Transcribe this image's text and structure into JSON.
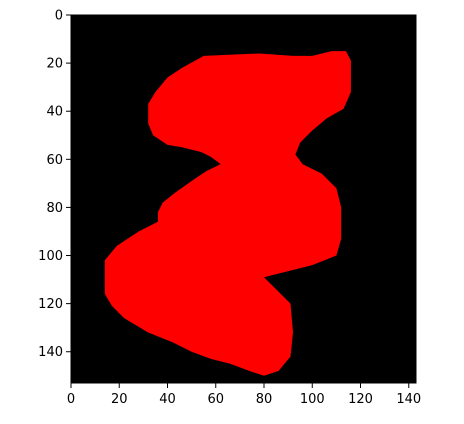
{
  "chart_data": {
    "type": "heatmap",
    "title": "",
    "xlabel": "",
    "ylabel": "",
    "xlim": [
      0,
      143
    ],
    "ylim": [
      153,
      0
    ],
    "x_ticks": [
      "0",
      "20",
      "40",
      "60",
      "80",
      "100",
      "120",
      "140"
    ],
    "y_ticks": [
      "0",
      "20",
      "40",
      "60",
      "80",
      "100",
      "120",
      "140"
    ],
    "background_color": "#000000",
    "shape_color": "#ff0000",
    "shape_outline": [
      [
        55,
        17
      ],
      [
        78,
        16
      ],
      [
        92,
        17
      ],
      [
        100,
        17
      ],
      [
        108,
        15
      ],
      [
        114,
        15
      ],
      [
        116,
        19
      ],
      [
        116,
        32
      ],
      [
        113,
        39
      ],
      [
        106,
        43
      ],
      [
        100,
        48
      ],
      [
        95,
        53
      ],
      [
        93,
        58
      ],
      [
        96,
        62
      ],
      [
        104,
        66
      ],
      [
        110,
        72
      ],
      [
        112,
        80
      ],
      [
        112,
        93
      ],
      [
        110,
        100
      ],
      [
        100,
        104
      ],
      [
        88,
        107
      ],
      [
        80,
        109
      ],
      [
        85,
        114
      ],
      [
        91,
        120
      ],
      [
        92,
        132
      ],
      [
        91,
        142
      ],
      [
        86,
        148
      ],
      [
        80,
        150
      ],
      [
        74,
        148
      ],
      [
        66,
        145
      ],
      [
        58,
        143
      ],
      [
        50,
        140
      ],
      [
        42,
        136
      ],
      [
        32,
        132
      ],
      [
        22,
        126
      ],
      [
        17,
        121
      ],
      [
        14,
        116
      ],
      [
        14,
        102
      ],
      [
        19,
        96
      ],
      [
        28,
        90
      ],
      [
        36,
        86
      ],
      [
        36,
        82
      ],
      [
        38,
        78
      ],
      [
        43,
        74
      ],
      [
        50,
        69
      ],
      [
        56,
        65
      ],
      [
        62,
        62
      ],
      [
        58,
        59
      ],
      [
        54,
        57
      ],
      [
        46,
        55
      ],
      [
        40,
        54
      ],
      [
        34,
        50
      ],
      [
        32,
        45
      ],
      [
        32,
        37
      ],
      [
        35,
        32
      ],
      [
        40,
        26
      ],
      [
        46,
        22
      ]
    ]
  }
}
